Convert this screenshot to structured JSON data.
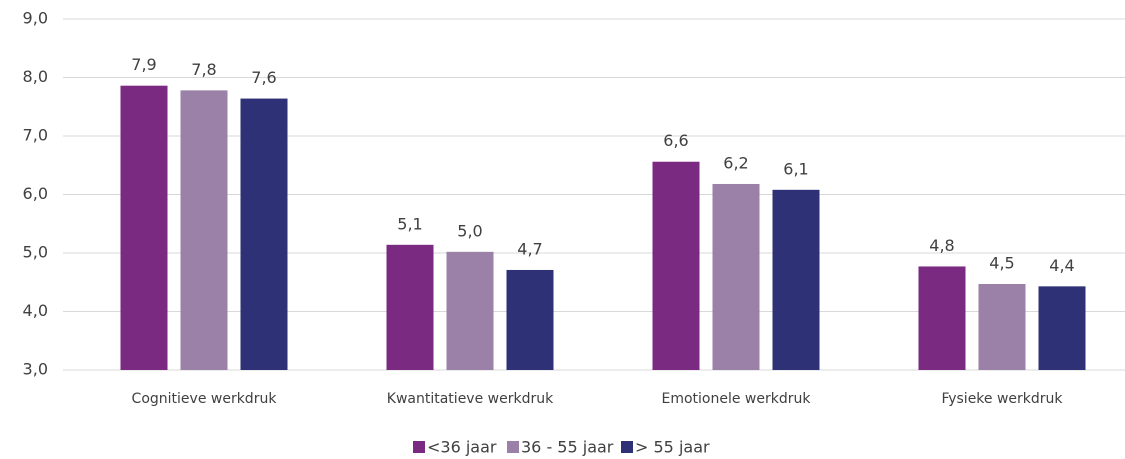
{
  "chart_data": {
    "type": "bar",
    "categories": [
      "Cognitieve werkdruk",
      "Kwantitatieve werkdruk",
      "Emotionele werkdruk",
      "Fysieke werkdruk"
    ],
    "series": [
      {
        "name": "<36 jaar",
        "color": "#7b2a82",
        "values": [
          7.86,
          5.14,
          6.56,
          4.77
        ],
        "value_labels": [
          "7,9",
          "5,1",
          "6,6",
          "4,8"
        ]
      },
      {
        "name": "36 - 55 jaar",
        "color": "#9b80a8",
        "values": [
          7.78,
          5.02,
          6.18,
          4.47
        ],
        "value_labels": [
          "7,8",
          "5,0",
          "6,2",
          "4,5"
        ]
      },
      {
        "name": "> 55 jaar",
        "color": "#2e3176",
        "values": [
          7.64,
          4.71,
          6.08,
          4.43
        ],
        "value_labels": [
          "7,6",
          "4,7",
          "6,1",
          "4,4"
        ]
      }
    ],
    "ylim": [
      3,
      9
    ],
    "yticks": [
      {
        "value": 3,
        "label": "3,0"
      },
      {
        "value": 4,
        "label": "4,0"
      },
      {
        "value": 5,
        "label": "5,0"
      },
      {
        "value": 6,
        "label": "6,0"
      },
      {
        "value": 7,
        "label": "7,0"
      },
      {
        "value": 8,
        "label": "8,0"
      },
      {
        "value": 9,
        "label": "9,0"
      }
    ],
    "grid": true
  }
}
